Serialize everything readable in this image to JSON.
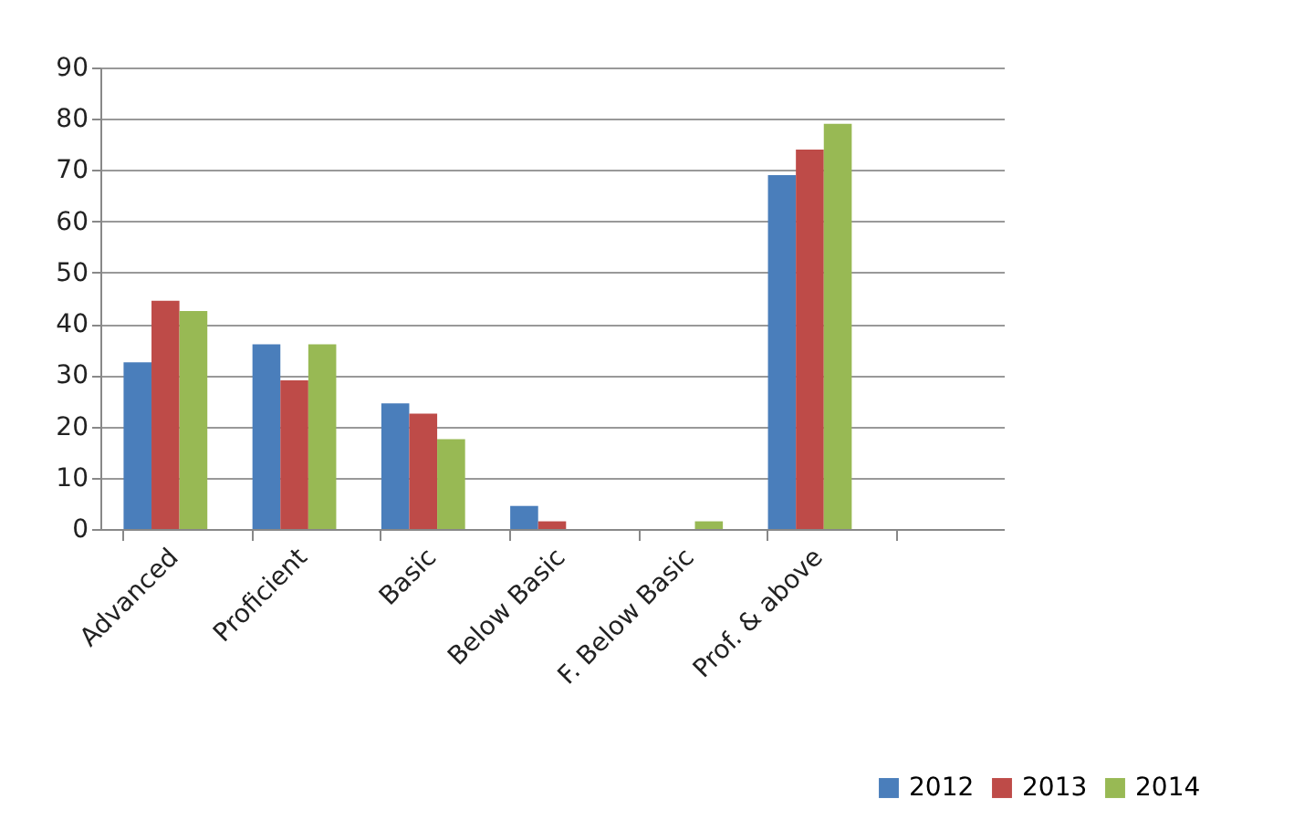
{
  "chart_data": {
    "type": "bar",
    "categories": [
      "Advanced",
      "Proficient",
      "Basic",
      "Below Basic",
      "F. Below Basic",
      "Prof. & above",
      null
    ],
    "series": [
      {
        "name": "2012",
        "color": "#4a7ebb",
        "values": [
          32.5,
          36,
          24.5,
          4.5,
          0,
          69,
          null
        ]
      },
      {
        "name": "2013",
        "color": "#be4b48",
        "values": [
          44.5,
          29,
          22.5,
          1.5,
          0,
          74,
          null
        ]
      },
      {
        "name": "2014",
        "color": "#98b954",
        "values": [
          42.5,
          36,
          17.5,
          0,
          1.5,
          79,
          null
        ]
      }
    ],
    "ylim": [
      0,
      90
    ],
    "yticks": [
      0,
      10,
      20,
      30,
      40,
      50,
      60,
      70,
      80,
      90
    ],
    "grid": "y",
    "legend": "bottom right"
  }
}
